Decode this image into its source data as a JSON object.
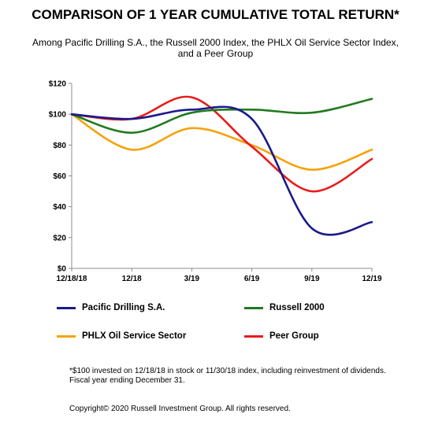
{
  "title": "COMPARISON OF 1 YEAR CUMULATIVE TOTAL RETURN*",
  "subtitle": "Among Pacific Drilling S.A., the Russell 2000 Index, the PHLX Oil Service Sector Index,\nand a Peer Group",
  "colors": {
    "pacific": "#1a1a8c",
    "russell": "#217a21",
    "phlx": "#f5a20a",
    "peer": "#e81c1c"
  },
  "chart_data": {
    "type": "line",
    "categories": [
      "12/18/18",
      "12/18",
      "3/19",
      "6/19",
      "9/19",
      "12/19"
    ],
    "ylim": [
      0,
      120
    ],
    "yticks": [
      "$0",
      "$20",
      "$40",
      "$60",
      "$80",
      "$100",
      "$120"
    ],
    "grid": false,
    "legend_position": "bottom",
    "series": [
      {
        "name": "Pacific Drilling S.A.",
        "color": "#1a1a8c",
        "values": [
          100,
          97,
          103,
          97,
          26,
          30
        ]
      },
      {
        "name": "Russell 2000",
        "color": "#217a21",
        "values": [
          100,
          88,
          101,
          103,
          101,
          110
        ]
      },
      {
        "name": "PHLX Oil Service Sector",
        "color": "#f5a20a",
        "values": [
          100,
          77,
          91,
          80,
          64,
          77
        ]
      },
      {
        "name": "Peer Group",
        "color": "#e81c1c",
        "values": [
          100,
          97,
          111,
          79,
          50,
          71
        ]
      }
    ]
  },
  "legend": [
    {
      "label": "Pacific Drilling S.A.",
      "color": "#1a1a8c"
    },
    {
      "label": "Russell 2000",
      "color": "#217a21"
    },
    {
      "label": "PHLX Oil Service Sector",
      "color": "#f5a20a"
    },
    {
      "label": "Peer Group",
      "color": "#e81c1c"
    }
  ],
  "footnote": "*$100 invested on 12/18/18 in stock or 11/30/18 index, including reinvestment of dividends.\nFiscal year ending December 31.",
  "copyright": "Copyright© 2020 Russell Investment Group. All rights reserved."
}
